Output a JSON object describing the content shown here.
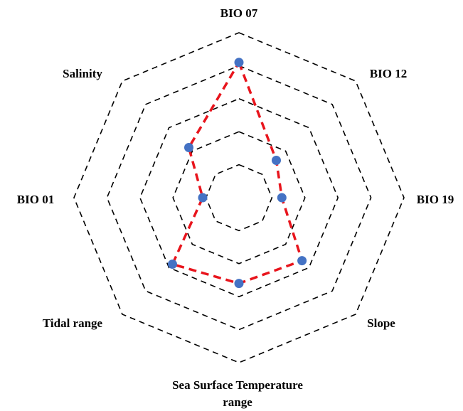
{
  "chart_data": {
    "type": "radar",
    "axes": [
      "BIO 07",
      "BIO 12",
      "BIO 19",
      "Slope",
      "Sea Surface Temperature range",
      "Tidal range",
      "BIO 01",
      "Salinity"
    ],
    "axis_label_lines": [
      [
        "BIO 07"
      ],
      [
        "BIO 12"
      ],
      [
        "BIO 19"
      ],
      [
        "Slope"
      ],
      [
        "Sea Surface Temperature",
        "range"
      ],
      [
        "Tidal range"
      ],
      [
        "BIO 01"
      ],
      [
        "Salinity"
      ]
    ],
    "rings": 5,
    "grid_style": "dashed octagons",
    "series": [
      {
        "values": [
          0.82,
          0.32,
          0.26,
          0.54,
          0.52,
          0.57,
          0.22,
          0.43
        ],
        "line_color": "#e8141c",
        "marker_color": "#4472c4"
      }
    ],
    "ylim": [
      0,
      1
    ]
  }
}
